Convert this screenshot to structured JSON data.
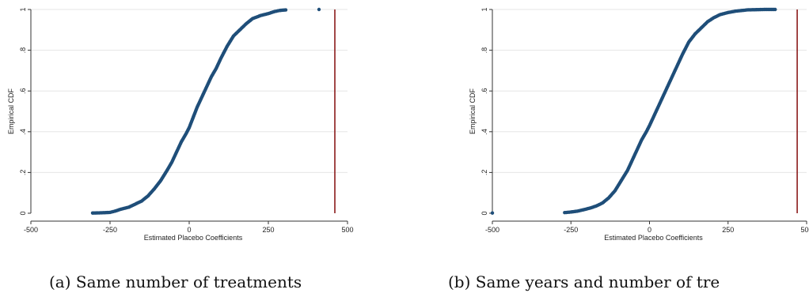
{
  "chart_data": [
    {
      "type": "scatter",
      "xlabel": "Estimated Placebo Coefficients",
      "ylabel": "Empirical CDF",
      "xlim": [
        -500,
        500
      ],
      "ylim": [
        0,
        1
      ],
      "xticks": [
        -500,
        -250,
        0,
        250,
        500
      ],
      "xtick_labels": [
        "-500",
        "-250",
        "0",
        "250",
        "500"
      ],
      "yticks": [
        0,
        0.2,
        0.4,
        0.6,
        0.8,
        1
      ],
      "ytick_labels": [
        "0",
        ".2",
        ".4",
        ".6",
        ".8",
        "1"
      ],
      "grid": true,
      "marker_color": "#1f4e79",
      "vline": {
        "x": 460,
        "color": "#8b1a1a"
      },
      "points": [
        {
          "x": -305,
          "y": 0.001
        },
        {
          "x": -280,
          "y": 0.002
        },
        {
          "x": -250,
          "y": 0.004
        },
        {
          "x": -235,
          "y": 0.01
        },
        {
          "x": -215,
          "y": 0.02
        },
        {
          "x": -190,
          "y": 0.03
        },
        {
          "x": -170,
          "y": 0.045
        },
        {
          "x": -150,
          "y": 0.06
        },
        {
          "x": -130,
          "y": 0.085
        },
        {
          "x": -110,
          "y": 0.12
        },
        {
          "x": -90,
          "y": 0.16
        },
        {
          "x": -70,
          "y": 0.21
        },
        {
          "x": -55,
          "y": 0.25
        },
        {
          "x": -40,
          "y": 0.3
        },
        {
          "x": -25,
          "y": 0.35
        },
        {
          "x": -10,
          "y": 0.39
        },
        {
          "x": 0,
          "y": 0.42
        },
        {
          "x": 10,
          "y": 0.46
        },
        {
          "x": 25,
          "y": 0.52
        },
        {
          "x": 40,
          "y": 0.57
        },
        {
          "x": 55,
          "y": 0.62
        },
        {
          "x": 70,
          "y": 0.67
        },
        {
          "x": 85,
          "y": 0.71
        },
        {
          "x": 100,
          "y": 0.76
        },
        {
          "x": 120,
          "y": 0.82
        },
        {
          "x": 140,
          "y": 0.87
        },
        {
          "x": 160,
          "y": 0.9
        },
        {
          "x": 180,
          "y": 0.93
        },
        {
          "x": 200,
          "y": 0.955
        },
        {
          "x": 225,
          "y": 0.97
        },
        {
          "x": 250,
          "y": 0.98
        },
        {
          "x": 270,
          "y": 0.99
        },
        {
          "x": 285,
          "y": 0.995
        },
        {
          "x": 305,
          "y": 0.998
        },
        {
          "x": 410,
          "y": 1.0
        }
      ]
    },
    {
      "type": "scatter",
      "xlabel": "Estimated Placebo Coefficients",
      "ylabel": "Empirical CDF",
      "xlim": [
        -500,
        500
      ],
      "ylim": [
        0,
        1
      ],
      "xticks": [
        -500,
        -250,
        0,
        250,
        500
      ],
      "xtick_labels": [
        "-500",
        "-250",
        "0",
        "250",
        "500"
      ],
      "yticks": [
        0,
        0.2,
        0.4,
        0.6,
        0.8,
        1
      ],
      "ytick_labels": [
        "0",
        ".2",
        ".4",
        ".6",
        ".8",
        "1"
      ],
      "grid": true,
      "marker_color": "#1f4e79",
      "vline": {
        "x": 470,
        "color": "#8b1a1a"
      },
      "points": [
        {
          "x": -500,
          "y": 0.001
        },
        {
          "x": -270,
          "y": 0.003
        },
        {
          "x": -250,
          "y": 0.006
        },
        {
          "x": -230,
          "y": 0.01
        },
        {
          "x": -210,
          "y": 0.017
        },
        {
          "x": -190,
          "y": 0.025
        },
        {
          "x": -170,
          "y": 0.035
        },
        {
          "x": -150,
          "y": 0.05
        },
        {
          "x": -130,
          "y": 0.075
        },
        {
          "x": -110,
          "y": 0.11
        },
        {
          "x": -90,
          "y": 0.16
        },
        {
          "x": -70,
          "y": 0.21
        },
        {
          "x": -55,
          "y": 0.26
        },
        {
          "x": -40,
          "y": 0.31
        },
        {
          "x": -25,
          "y": 0.36
        },
        {
          "x": -10,
          "y": 0.4
        },
        {
          "x": 0,
          "y": 0.43
        },
        {
          "x": 15,
          "y": 0.48
        },
        {
          "x": 30,
          "y": 0.53
        },
        {
          "x": 45,
          "y": 0.58
        },
        {
          "x": 60,
          "y": 0.63
        },
        {
          "x": 75,
          "y": 0.68
        },
        {
          "x": 90,
          "y": 0.73
        },
        {
          "x": 105,
          "y": 0.78
        },
        {
          "x": 125,
          "y": 0.84
        },
        {
          "x": 145,
          "y": 0.88
        },
        {
          "x": 165,
          "y": 0.91
        },
        {
          "x": 185,
          "y": 0.94
        },
        {
          "x": 205,
          "y": 0.96
        },
        {
          "x": 225,
          "y": 0.975
        },
        {
          "x": 250,
          "y": 0.985
        },
        {
          "x": 275,
          "y": 0.992
        },
        {
          "x": 300,
          "y": 0.996
        },
        {
          "x": 310,
          "y": 0.998
        },
        {
          "x": 365,
          "y": 1.0
        },
        {
          "x": 400,
          "y": 1.0
        }
      ]
    }
  ],
  "captions": [
    "(a) Same number of treatments",
    "(b) Same years and number of tre"
  ]
}
